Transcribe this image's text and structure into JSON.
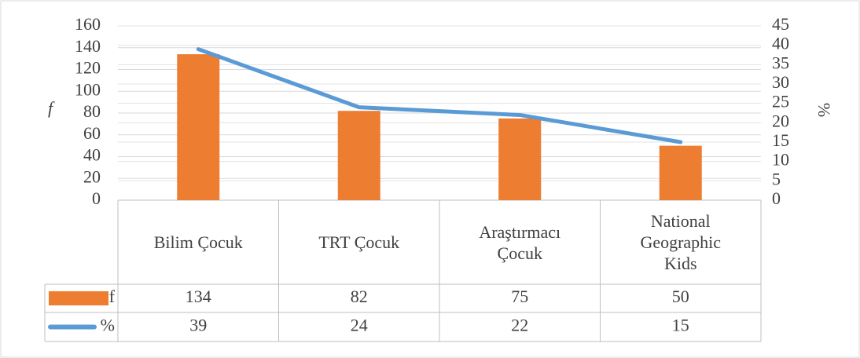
{
  "chart_data": {
    "type": "bar_line",
    "y_label": "f",
    "y2_label": "%",
    "categories": [
      "Bilim Çocuk",
      "TRT Çocuk",
      "Araştırmacı Çocuk",
      "National Geographic Kids"
    ],
    "series": [
      {
        "name": "f",
        "type": "bar",
        "color": "#ed7d31",
        "values": [
          134,
          82,
          75,
          50
        ]
      },
      {
        "name": "%",
        "type": "line",
        "axis": "y2",
        "color": "#5b9bd5",
        "values": [
          39,
          24,
          22,
          15
        ]
      }
    ],
    "ylim": [
      0,
      160
    ],
    "yticks": [
      0,
      20,
      40,
      60,
      80,
      100,
      120,
      140,
      160
    ],
    "y2lim": [
      0,
      45
    ],
    "y2ticks": [
      0,
      5,
      10,
      15,
      20,
      25,
      30,
      35,
      40,
      45
    ],
    "grid": true,
    "data_table": true
  }
}
